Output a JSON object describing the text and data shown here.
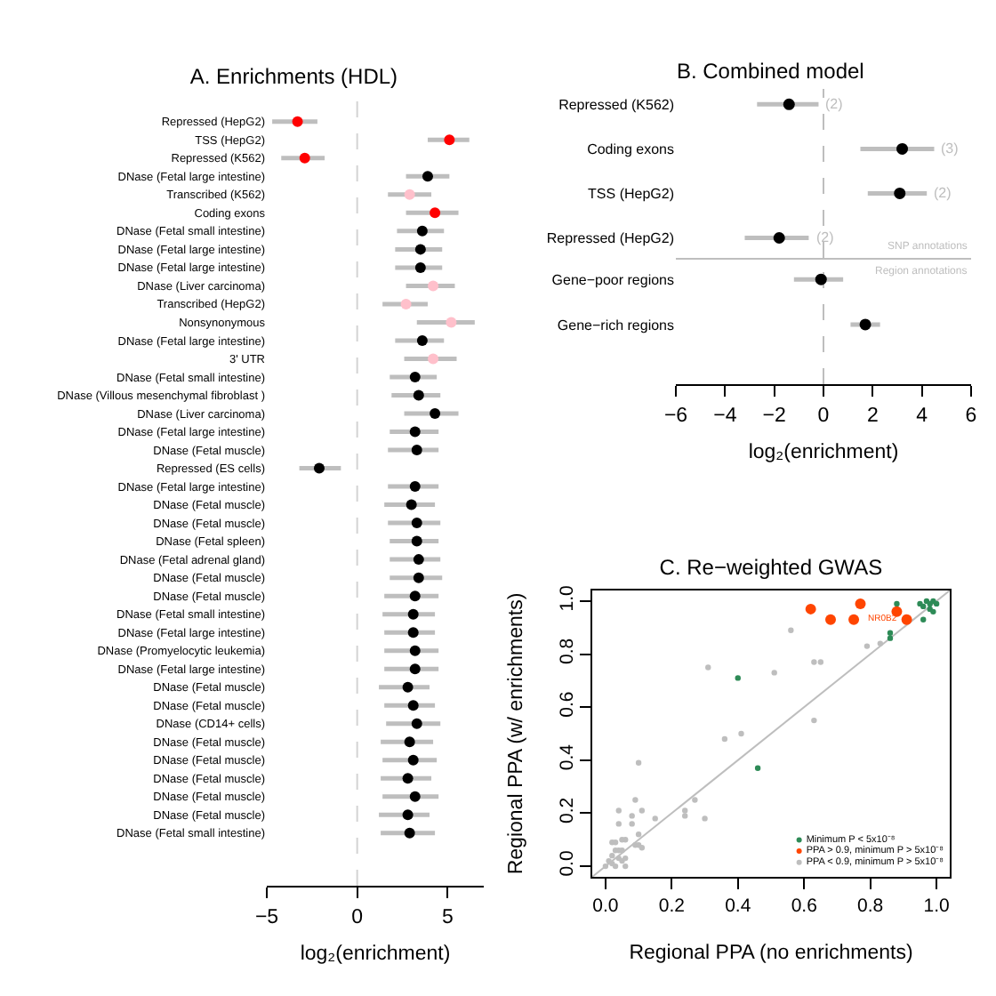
{
  "chart_data": [
    {
      "type": "scatter",
      "title": "A. Enrichments (HDL)",
      "xlabel": "log₂(enrichment)",
      "orientation": "horizontal",
      "marker": "circle",
      "categories": [
        "Repressed (HepG2)",
        "TSS (HepG2)",
        "Repressed (K562)",
        "DNase (Fetal large intestine)",
        "Transcribed (K562)",
        "Coding exons",
        "DNase (Fetal small intestine)",
        "DNase (Fetal large intestine)",
        "DNase (Fetal large intestine)",
        "DNase (Liver carcinoma)",
        "Transcribed (HepG2)",
        "Nonsynonymous",
        "DNase (Fetal large intestine)",
        "3' UTR",
        "DNase (Fetal small intestine)",
        "DNase (Villous mesenchymal fibroblast )",
        "DNase (Liver carcinoma)",
        "DNase (Fetal large intestine)",
        "DNase (Fetal muscle)",
        "Repressed (ES cells)",
        "DNase (Fetal large intestine)",
        "DNase (Fetal muscle)",
        "DNase (Fetal muscle)",
        "DNase (Fetal spleen)",
        "DNase (Fetal adrenal gland)",
        "DNase (Fetal muscle)",
        "DNase (Fetal muscle)",
        "DNase (Fetal small intestine)",
        "DNase (Fetal large intestine)",
        "DNase (Promyelocytic leukemia)",
        "DNase (Fetal large intestine)",
        "DNase (Fetal muscle)",
        "DNase (Fetal muscle)",
        "DNase (CD14+ cells)",
        "DNase (Fetal muscle)",
        "DNase (Fetal muscle)",
        "DNase (Fetal muscle)",
        "DNase (Fetal muscle)",
        "DNase (Fetal muscle)",
        "DNase (Fetal small intestine)"
      ],
      "values": [
        -3.3,
        5.1,
        -2.9,
        3.9,
        2.9,
        4.3,
        3.6,
        3.5,
        3.5,
        4.2,
        2.7,
        5.2,
        3.6,
        4.2,
        3.2,
        3.4,
        4.3,
        3.2,
        3.3,
        -2.1,
        3.2,
        3.0,
        3.3,
        3.3,
        3.4,
        3.4,
        3.2,
        3.1,
        3.1,
        3.2,
        3.2,
        2.8,
        3.1,
        3.3,
        2.9,
        3.1,
        2.8,
        3.2,
        2.8,
        2.9
      ],
      "errors": [
        [
          -4.7,
          -2.2
        ],
        [
          3.9,
          6.2
        ],
        [
          -4.2,
          -1.8
        ],
        [
          2.7,
          5.1
        ],
        [
          1.7,
          4.1
        ],
        [
          2.7,
          5.6
        ],
        [
          2.2,
          4.8
        ],
        [
          2.1,
          4.7
        ],
        [
          2.1,
          4.7
        ],
        [
          2.7,
          5.4
        ],
        [
          1.4,
          3.9
        ],
        [
          3.3,
          6.5
        ],
        [
          2.1,
          4.8
        ],
        [
          2.6,
          5.5
        ],
        [
          1.8,
          4.4
        ],
        [
          1.9,
          4.6
        ],
        [
          2.6,
          5.6
        ],
        [
          1.8,
          4.5
        ],
        [
          1.7,
          4.5
        ],
        [
          -3.2,
          -0.9
        ],
        [
          1.7,
          4.5
        ],
        [
          1.5,
          4.3
        ],
        [
          1.7,
          4.6
        ],
        [
          1.8,
          4.5
        ],
        [
          1.8,
          4.6
        ],
        [
          1.8,
          4.7
        ],
        [
          1.5,
          4.5
        ],
        [
          1.4,
          4.3
        ],
        [
          1.5,
          4.3
        ],
        [
          1.5,
          4.5
        ],
        [
          1.5,
          4.5
        ],
        [
          1.2,
          4.0
        ],
        [
          1.5,
          4.3
        ],
        [
          1.6,
          4.6
        ],
        [
          1.3,
          4.2
        ],
        [
          1.4,
          4.4
        ],
        [
          1.3,
          4.1
        ],
        [
          1.4,
          4.5
        ],
        [
          1.2,
          4.0
        ],
        [
          1.3,
          4.3
        ]
      ],
      "colors": [
        "#ff0000",
        "#ff0000",
        "#ff0000",
        "#000000",
        "#ffc0cb",
        "#ff0000",
        "#000000",
        "#000000",
        "#000000",
        "#ffc0cb",
        "#ffc0cb",
        "#ffc0cb",
        "#000000",
        "#ffc0cb",
        "#000000",
        "#000000",
        "#000000",
        "#000000",
        "#000000",
        "#000000",
        "#000000",
        "#000000",
        "#000000",
        "#000000",
        "#000000",
        "#000000",
        "#000000",
        "#000000",
        "#000000",
        "#000000",
        "#000000",
        "#000000",
        "#000000",
        "#000000",
        "#000000",
        "#000000",
        "#000000",
        "#000000",
        "#000000",
        "#000000"
      ],
      "xlim": [
        -5,
        7
      ],
      "xticks": [
        -5,
        0,
        5
      ],
      "ref_lines": [
        {
          "axis": "x",
          "value": 0,
          "line_style": "dashed",
          "color": "#d3d3d3"
        }
      ]
    },
    {
      "type": "scatter",
      "title": "B. Combined model",
      "orientation": "horizontal",
      "marker": "circle",
      "tick_labels": "y",
      "categories": [
        "Repressed (K562)",
        "Coding exons",
        "TSS (HepG2)",
        "Repressed (HepG2)"
      ],
      "values": [
        -1.4,
        3.2,
        3.1,
        -1.8
      ],
      "errors": [
        [
          -2.7,
          -0.2
        ],
        [
          1.5,
          4.5
        ],
        [
          1.8,
          4.2
        ],
        [
          -3.2,
          -0.6
        ]
      ],
      "color": "#000000",
      "xlim": [
        -6,
        6
      ],
      "ref_lines": [
        {
          "axis": "x",
          "value": 0,
          "line_style": "dashed",
          "color": "#bebebe"
        }
      ],
      "annotations": [
        {
          "text": "(2)",
          "x": -0.2,
          "y": "Repressed (K562)"
        },
        {
          "text": "(3)",
          "x": 4.5,
          "y": "Coding exons"
        },
        {
          "text": "(2)",
          "x": 4.2,
          "y": "TSS (HepG2)"
        },
        {
          "text": "(2)",
          "x": -0.6,
          "y": "Repressed (HepG2)"
        },
        "SNP annotations"
      ]
    },
    {
      "type": "scatter",
      "xlabel": "log₂(enrichment)",
      "orientation": "horizontal",
      "marker": "circle",
      "categories": [
        "Gene−poor regions",
        "Gene−rich regions"
      ],
      "values": [
        -0.1,
        1.7
      ],
      "errors": [
        [
          -1.2,
          0.8
        ],
        [
          1.1,
          2.3
        ]
      ],
      "color": "#000000",
      "xlim": [
        -6,
        6
      ],
      "xticks": [
        -6,
        -4,
        -2,
        0,
        2,
        4,
        6
      ],
      "ref_lines": [
        {
          "axis": "x",
          "value": 0,
          "line_style": "dashed",
          "color": "#bebebe"
        }
      ],
      "annotations": [
        "Region annotations"
      ]
    },
    {
      "type": "scatter",
      "title": "C. Re−weighted GWAS",
      "xlabel": "Regional PPA (no enrichments)",
      "ylabel": "Regional PPA (w/ enrichments)",
      "marker": "circle",
      "legend": "bottom right",
      "xlim": [
        -0.04,
        1.04
      ],
      "ylim": [
        -0.04,
        1.04
      ],
      "xticks": [
        {
          "value": 0,
          "label": "0.0"
        },
        0.2,
        0.4,
        0.6,
        0.8,
        {
          "value": 1,
          "label": "1.0"
        }
      ],
      "yticks": [
        {
          "value": 0,
          "label": "0.0"
        },
        0.2,
        0.4,
        0.6,
        0.8,
        {
          "value": 1,
          "label": "1.0"
        }
      ],
      "series": [
        {
          "type": "line",
          "marker": "none",
          "color": "#bebebe",
          "x": [
            -0.04,
            1.04
          ],
          "values": [
            -0.04,
            1.04
          ]
        },
        {
          "name": "Minimum P < 5x10⁻⁸",
          "color": "#2e8b57",
          "x": [
            0.4,
            0.46,
            0.86,
            0.86,
            0.88,
            0.95,
            0.96,
            0.97,
            0.98,
            0.99,
            1.0,
            0.98,
            0.99,
            0.96
          ],
          "values": [
            0.71,
            0.37,
            0.88,
            0.86,
            0.99,
            0.99,
            0.98,
            1.0,
            0.99,
            1.0,
            0.99,
            0.97,
            0.96,
            0.93
          ]
        },
        {
          "name": "PPA > 0.9, minimum P > 5x10⁻⁸",
          "color": "#ff4500",
          "x": [
            0.62,
            0.68,
            0.75,
            0.77,
            0.88,
            0.91
          ],
          "values": [
            0.97,
            0.93,
            0.93,
            0.99,
            0.96,
            0.93
          ]
        },
        {
          "name": "PPA < 0.9, minimum P > 5x10⁻⁸",
          "color": "#bebebe",
          "x": [
            0.56,
            0.31,
            0.51,
            0.63,
            0.65,
            0.79,
            0.83,
            0.36,
            0.41,
            0.63,
            0.1,
            0.09,
            0.27,
            0.24,
            0.24,
            0.3,
            0.15,
            0.04,
            0.11,
            0.08,
            0.04,
            0.08,
            0.1,
            0.11,
            0.09,
            0.1,
            0.06,
            0.05,
            0.02,
            0.03,
            0.0,
            0.01,
            0.02,
            0.03,
            0.04,
            0.05,
            0.02,
            0.04,
            0.05,
            0.06,
            0.03,
            0.06
          ],
          "values": [
            0.89,
            0.75,
            0.73,
            0.77,
            0.77,
            0.83,
            0.84,
            0.48,
            0.5,
            0.55,
            0.39,
            0.25,
            0.25,
            0.21,
            0.19,
            0.18,
            0.18,
            0.21,
            0.21,
            0.19,
            0.16,
            0.16,
            0.12,
            0.07,
            0.08,
            0.08,
            0.1,
            0.1,
            0.09,
            0.09,
            0.0,
            0.02,
            0.04,
            0.06,
            0.06,
            0.06,
            0.01,
            0.03,
            0.02,
            0.03,
            0.0,
            0.0
          ]
        }
      ],
      "annotations": [
        {
          "text": "NR0B2",
          "x": 0.91,
          "y": 0.93
        }
      ]
    }
  ]
}
